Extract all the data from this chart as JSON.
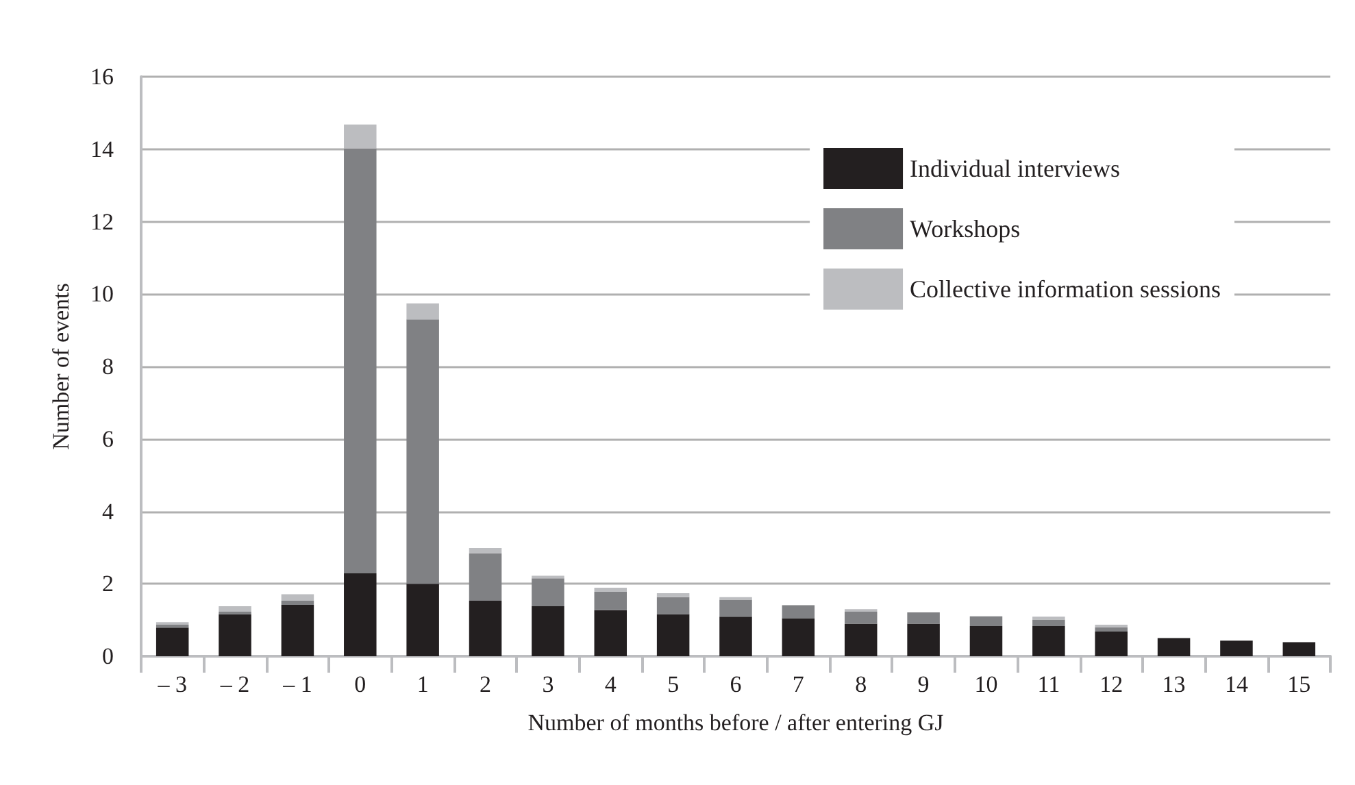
{
  "chart_data": {
    "type": "bar",
    "stacked": true,
    "xlabel": "Number of months before / after entering GJ",
    "ylabel": "Number of events",
    "categories": [
      "– 3",
      "– 2",
      "– 1",
      "0",
      "1",
      "2",
      "3",
      "4",
      "5",
      "6",
      "7",
      "8",
      "9",
      "10",
      "11",
      "12",
      "13",
      "14",
      "15"
    ],
    "series": [
      {
        "name": "Individual interviews",
        "color": "#231f20",
        "values": [
          0.79,
          1.16,
          1.42,
          2.29,
          2.0,
          1.53,
          1.38,
          1.27,
          1.16,
          1.09,
          1.05,
          0.9,
          0.9,
          0.83,
          0.83,
          0.68,
          0.5,
          0.43,
          0.39
        ]
      },
      {
        "name": "Workshops",
        "color": "#808184",
        "values": [
          0.08,
          0.07,
          0.11,
          11.73,
          7.3,
          1.31,
          0.77,
          0.51,
          0.47,
          0.47,
          0.36,
          0.33,
          0.31,
          0.27,
          0.18,
          0.12,
          0,
          0,
          0
        ]
      },
      {
        "name": "Collective information sessions",
        "color": "#bcbdc0",
        "values": [
          0.07,
          0.15,
          0.18,
          0.66,
          0.44,
          0.15,
          0.07,
          0.11,
          0.11,
          0.07,
          null,
          0.07,
          null,
          null,
          0.08,
          0.07,
          0,
          0,
          0
        ]
      }
    ],
    "ylim": [
      0,
      16
    ],
    "yticks": [
      0,
      2,
      4,
      6,
      8,
      10,
      12,
      14,
      16
    ],
    "grid": "y",
    "legend": "top right"
  }
}
